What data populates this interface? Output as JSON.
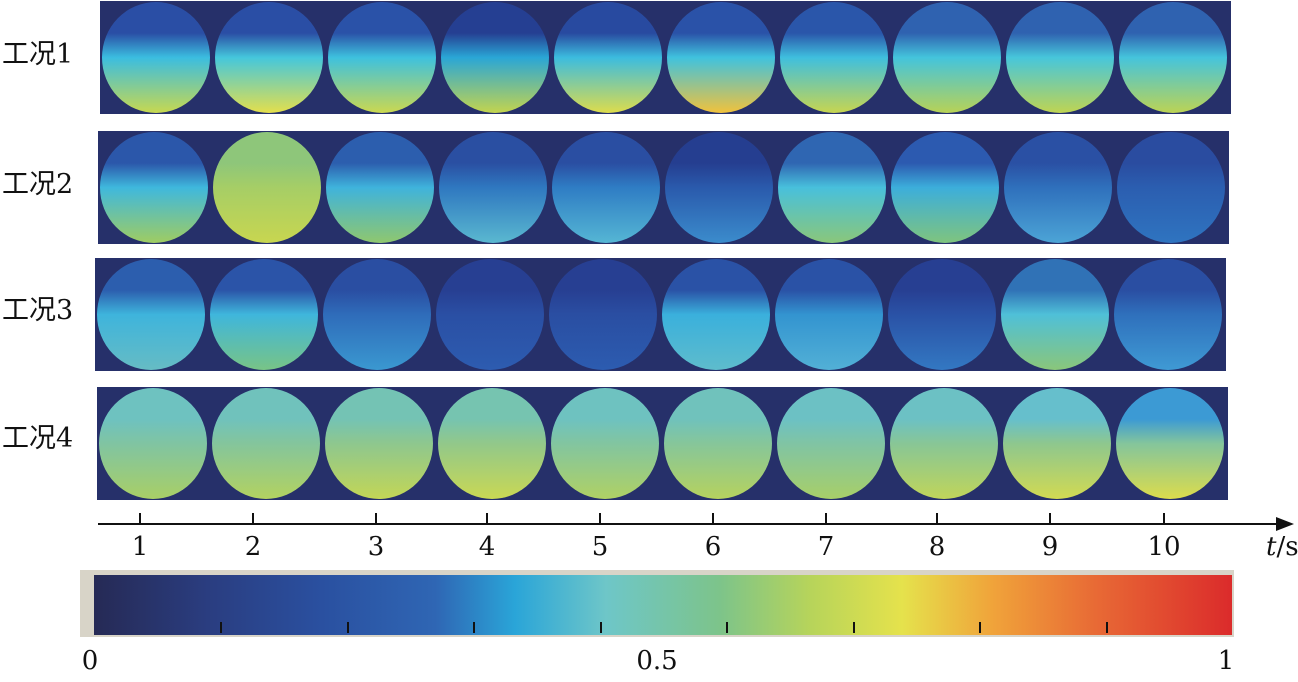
{
  "rows": [
    {
      "label": "工况1",
      "frames": [
        {
          "top": "#2a4ea5",
          "mid": "#3bbde0",
          "bottom": "#c7d850"
        },
        {
          "top": "#2a4ea5",
          "mid": "#45c7dc",
          "bottom": "#e4df4c"
        },
        {
          "top": "#2a52a8",
          "mid": "#3ec1de",
          "bottom": "#cbd850"
        },
        {
          "top": "#253f92",
          "mid": "#2aa6d6",
          "bottom": "#c3d44e"
        },
        {
          "top": "#284aa0",
          "mid": "#3cbcdf",
          "bottom": "#dddc4c"
        },
        {
          "top": "#2a52a8",
          "mid": "#40c2de",
          "bottom": "#f1c23c"
        },
        {
          "top": "#2a56aa",
          "mid": "#3fbfde",
          "bottom": "#c7d550"
        },
        {
          "top": "#2f62b0",
          "mid": "#44c4dc",
          "bottom": "#b8d256"
        },
        {
          "top": "#2f62b0",
          "mid": "#47c6db",
          "bottom": "#bfd452"
        },
        {
          "top": "#2f62b0",
          "mid": "#45c4dc",
          "bottom": "#bcd354"
        }
      ]
    },
    {
      "label": "工况2",
      "frames": [
        {
          "top": "#2b57aa",
          "mid": "#3fb8dd",
          "bottom": "#9fcc62"
        },
        {
          "top": "#8ec67a",
          "mid": "#a6ce66",
          "bottom": "#c8d650"
        },
        {
          "top": "#2c5eae",
          "mid": "#3fb3dc",
          "bottom": "#8fc76e"
        },
        {
          "top": "#2a4fa2",
          "mid": "#2f78c0",
          "bottom": "#5ab8d0"
        },
        {
          "top": "#2a4ea2",
          "mid": "#2f7dc4",
          "bottom": "#55b6d4"
        },
        {
          "top": "#253e90",
          "mid": "#2a5aac",
          "bottom": "#3b8ccc"
        },
        {
          "top": "#2f66b2",
          "mid": "#48c0dc",
          "bottom": "#8ac77a"
        },
        {
          "top": "#2c5ab0",
          "mid": "#3caedb",
          "bottom": "#7fc47e"
        },
        {
          "top": "#2a50a4",
          "mid": "#2f70bc",
          "bottom": "#4ca4d6"
        },
        {
          "top": "#2a4ca0",
          "mid": "#2b5eb0",
          "bottom": "#2f74c0"
        }
      ]
    },
    {
      "label": "工况3",
      "frames": [
        {
          "top": "#2c5eae",
          "mid": "#3eb4dc",
          "bottom": "#66bcc4"
        },
        {
          "top": "#2b54a8",
          "mid": "#3fb6dc",
          "bottom": "#78c486"
        },
        {
          "top": "#2a4ea2",
          "mid": "#2f6cba",
          "bottom": "#3a98d0"
        },
        {
          "top": "#273f92",
          "mid": "#2a4fa4",
          "bottom": "#2d5cb0"
        },
        {
          "top": "#273f92",
          "mid": "#2a4ea2",
          "bottom": "#2c5cb0"
        },
        {
          "top": "#2a52a6",
          "mid": "#3ab0dc",
          "bottom": "#5ebccc"
        },
        {
          "top": "#2a52a6",
          "mid": "#3394d0",
          "bottom": "#52b0d6"
        },
        {
          "top": "#273f92",
          "mid": "#2a52a6",
          "bottom": "#3378c2"
        },
        {
          "top": "#3072b6",
          "mid": "#4fc0d8",
          "bottom": "#8ac67a"
        },
        {
          "top": "#2a4ea2",
          "mid": "#2f70bc",
          "bottom": "#3f9ad4"
        }
      ]
    },
    {
      "label": "工况4",
      "frames": [
        {
          "top": "#6ec2c0",
          "mid": "#80c4a2",
          "bottom": "#a9cf66"
        },
        {
          "top": "#70c2bc",
          "mid": "#84c59c",
          "bottom": "#b3d260"
        },
        {
          "top": "#74c3b4",
          "mid": "#8ec78e",
          "bottom": "#c3d656"
        },
        {
          "top": "#76c4b0",
          "mid": "#92c88a",
          "bottom": "#c9d854"
        },
        {
          "top": "#6ec2c0",
          "mid": "#82c5a0",
          "bottom": "#b0d164"
        },
        {
          "top": "#70c2bc",
          "mid": "#86c69a",
          "bottom": "#b6d25e"
        },
        {
          "top": "#6cc1c4",
          "mid": "#80c4a4",
          "bottom": "#a8cf68"
        },
        {
          "top": "#6cc1c4",
          "mid": "#88c696",
          "bottom": "#c0d55a"
        },
        {
          "top": "#66bfcc",
          "mid": "#8ec78e",
          "bottom": "#d2da52"
        },
        {
          "top": "#3c9ad4",
          "mid": "#84c59c",
          "bottom": "#dcdc4c"
        }
      ]
    }
  ],
  "time_axis": {
    "ticks": [
      "1",
      "2",
      "3",
      "4",
      "5",
      "6",
      "7",
      "8",
      "9",
      "10"
    ],
    "variable": "t",
    "unit": "/s"
  },
  "colorbar": {
    "min_label": "0",
    "mid_label": "0.5",
    "max_label": "1",
    "minor_ticks": 8
  }
}
